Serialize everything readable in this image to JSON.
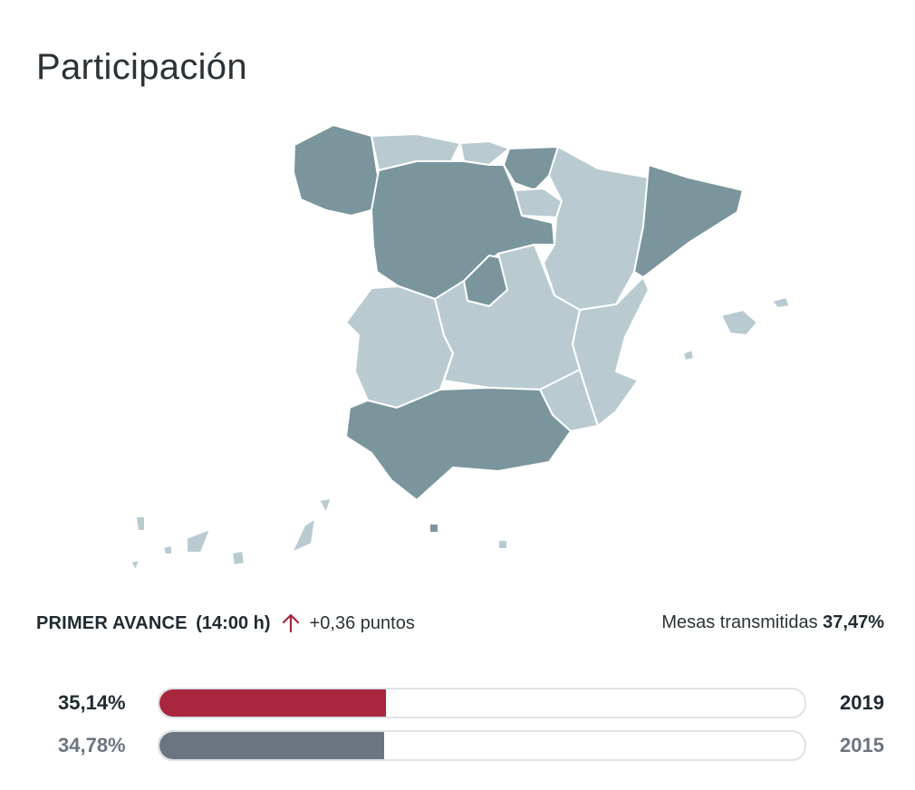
{
  "title": "Participación",
  "map": {
    "colors": {
      "high": "#7a959c",
      "low": "#b9cbd1"
    }
  },
  "summary": {
    "label": "PRIMER AVANCE",
    "time": "(14:00 h)",
    "trend": "up",
    "trend_color": "#a8263e",
    "delta": "+0,36 puntos",
    "mesas_label": "Mesas transmitidas",
    "mesas_value": "37,47%"
  },
  "bars": [
    {
      "percent_label": "35,14%",
      "value": 35.14,
      "year": "2019",
      "color": "#a8263e",
      "text_color": "#1f2a30"
    },
    {
      "percent_label": "34,78%",
      "value": 34.78,
      "year": "2015",
      "color": "#6b7581",
      "text_color": "#6b7581"
    }
  ]
}
